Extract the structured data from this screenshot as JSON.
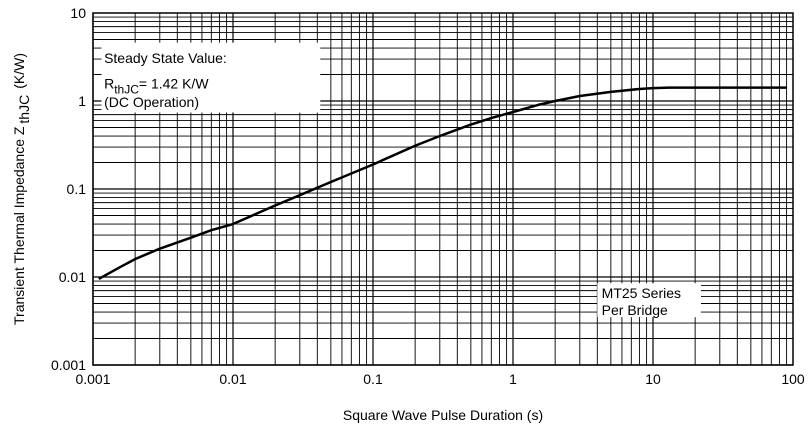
{
  "chart_data": {
    "type": "line",
    "title": "",
    "xlabel": "Square Wave Pulse Duration (s)",
    "ylabel_main": "Transient Thermal Impedance Z",
    "ylabel_sub": "thJC",
    "ylabel_unit": "(K/W)",
    "xscale": "log",
    "yscale": "log",
    "xlim": [
      0.001,
      100
    ],
    "ylim": [
      0.001,
      10
    ],
    "grid": true,
    "x_ticks": [
      {
        "value": 0.001,
        "label": "0.001"
      },
      {
        "value": 0.01,
        "label": "0.01"
      },
      {
        "value": 0.1,
        "label": "0.1"
      },
      {
        "value": 1,
        "label": "1"
      },
      {
        "value": 10,
        "label": "10"
      },
      {
        "value": 100,
        "label": "100"
      }
    ],
    "y_ticks": [
      {
        "value": 0.001,
        "label": "0.001"
      },
      {
        "value": 0.01,
        "label": "0.01"
      },
      {
        "value": 0.1,
        "label": "0.1"
      },
      {
        "value": 1,
        "label": "1"
      },
      {
        "value": 10,
        "label": "10"
      }
    ],
    "series": [
      {
        "color": "#000000",
        "x": [
          0.0011,
          0.0015,
          0.002,
          0.003,
          0.005,
          0.007,
          0.01,
          0.02,
          0.03,
          0.05,
          0.07,
          0.1,
          0.2,
          0.3,
          0.5,
          0.7,
          1,
          1.5,
          2,
          3,
          5,
          8,
          10,
          13,
          20,
          50,
          90
        ],
        "y": [
          0.0095,
          0.0125,
          0.016,
          0.021,
          0.028,
          0.034,
          0.04,
          0.065,
          0.085,
          0.12,
          0.15,
          0.19,
          0.31,
          0.4,
          0.54,
          0.64,
          0.75,
          0.9,
          1.0,
          1.14,
          1.27,
          1.37,
          1.4,
          1.42,
          1.42,
          1.42,
          1.42
        ]
      }
    ],
    "annotations": {
      "steady_state": {
        "line1": "Steady State Value:",
        "r_main": "R",
        "r_sub": "thJC",
        "r_value": "= 1.42 K/W",
        "line3": "(DC Operation)"
      },
      "series_note": {
        "line1": "MT25 Series",
        "line2": "Per Bridge"
      }
    }
  }
}
